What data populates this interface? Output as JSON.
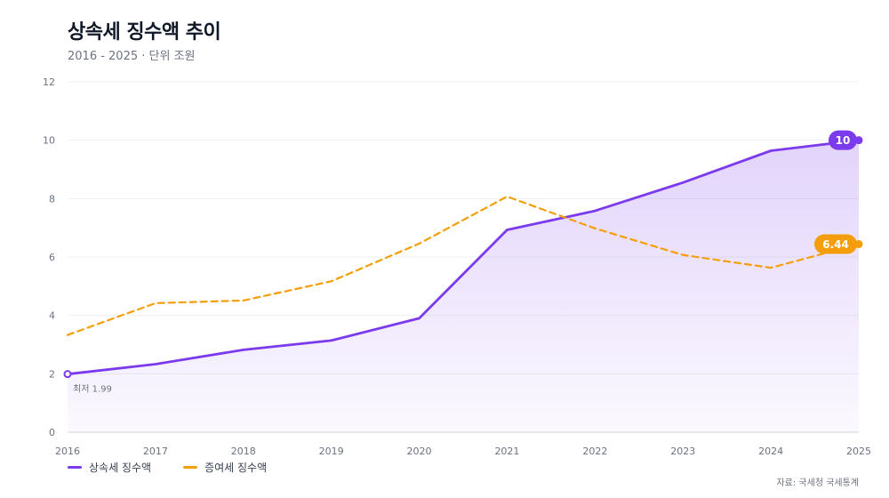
{
  "header": {
    "title": "상속세 징수액 추이",
    "subtitle": "2016 - 2025 · 단위 조원"
  },
  "legend": {
    "items": [
      {
        "label": "상속세 징수액",
        "color": "#7c3aed",
        "style": "solid"
      },
      {
        "label": "증여세 징수액",
        "color": "#f59e0b",
        "style": "dashed"
      }
    ]
  },
  "source": "자료: 국세청 국세통계",
  "annotations": {
    "min_label": "최저 1.99",
    "end_badge_inheritance": "10",
    "end_badge_gift": "6.44"
  },
  "chart_data": {
    "type": "line",
    "title": "상속세 징수액 추이",
    "subtitle": "2016 - 2025 · 단위 조원",
    "x": [
      "2016",
      "2017",
      "2018",
      "2019",
      "2020",
      "2021",
      "2022",
      "2023",
      "2024",
      "2025"
    ],
    "ylim": [
      0,
      12
    ],
    "yticks": [
      0,
      2,
      4,
      6,
      8,
      10,
      12
    ],
    "grid": true,
    "legend_position": "bottom-left",
    "series": [
      {
        "name": "상속세 징수액",
        "color": "#7c3aed",
        "style": "solid",
        "area": true,
        "values": [
          1.99,
          2.33,
          2.82,
          3.14,
          3.9,
          6.93,
          7.58,
          8.55,
          9.64,
          10.0
        ]
      },
      {
        "name": "증여세 징수액",
        "color": "#f59e0b",
        "style": "dashed",
        "area": false,
        "values": [
          3.33,
          4.42,
          4.51,
          5.17,
          6.46,
          8.07,
          6.98,
          6.07,
          5.63,
          6.44
        ]
      }
    ]
  }
}
